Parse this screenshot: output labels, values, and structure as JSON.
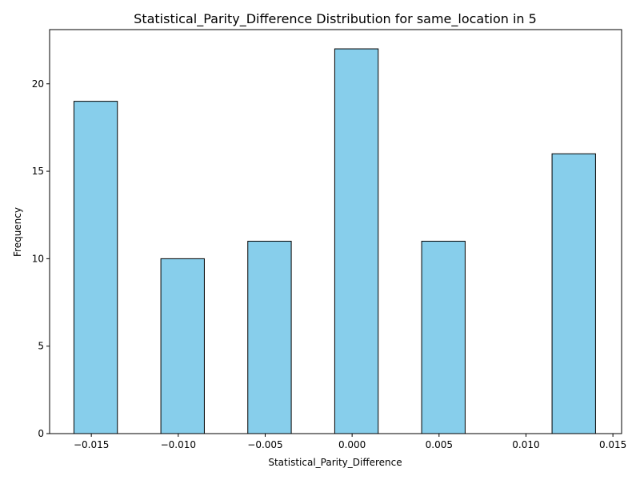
{
  "chart_data": {
    "type": "bar",
    "title": "Statistical_Parity_Difference Distribution for same_location in 5",
    "xlabel": "Statistical_Parity_Difference",
    "ylabel": "Frequency",
    "xlim": [
      -0.0174,
      0.0155
    ],
    "ylim": [
      0,
      23.1
    ],
    "xticks": [
      -0.015,
      -0.01,
      -0.005,
      0.0,
      0.005,
      0.01,
      0.015
    ],
    "xtick_labels": [
      "−0.015",
      "−0.010",
      "−0.005",
      "0.000",
      "0.005",
      "0.010",
      "0.015"
    ],
    "yticks": [
      0,
      5,
      10,
      15,
      20
    ],
    "ytick_labels": [
      "0",
      "5",
      "10",
      "15",
      "20"
    ],
    "bin_edges": [
      -0.016,
      -0.0135,
      -0.011,
      -0.0085,
      -0.006,
      -0.0035,
      -0.001,
      0.0015,
      0.004,
      0.0065,
      0.009,
      0.0115,
      0.014
    ],
    "bars": [
      {
        "x0": -0.016,
        "x1": -0.0135,
        "count": 19
      },
      {
        "x0": -0.011,
        "x1": -0.0085,
        "count": 10
      },
      {
        "x0": -0.006,
        "x1": -0.0035,
        "count": 11
      },
      {
        "x0": -0.001,
        "x1": 0.0015,
        "count": 22
      },
      {
        "x0": 0.004,
        "x1": 0.0065,
        "count": 11
      },
      {
        "x0": 0.0115,
        "x1": 0.014,
        "count": 16
      }
    ],
    "bar_color": "#87ceeb",
    "edge_color": "#000000",
    "grid": false,
    "legend": "none"
  }
}
